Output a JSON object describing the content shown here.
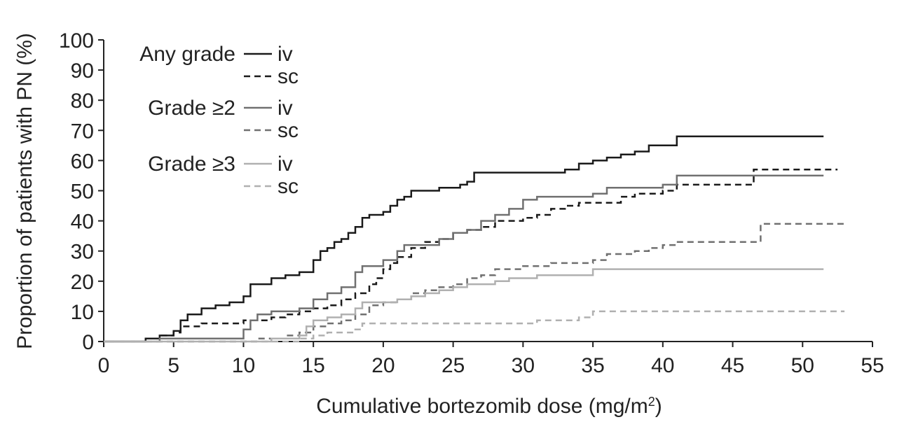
{
  "chart_data": {
    "type": "line",
    "step": true,
    "xlabel": "Cumulative bortezomib dose (mg/m",
    "xlabel_superscript": "2",
    "xlabel_suffix": ")",
    "ylabel": "Proportion of patients with PN (%)",
    "xlim": [
      0,
      55
    ],
    "ylim": [
      0,
      100
    ],
    "xticks": [
      0,
      5,
      10,
      15,
      20,
      25,
      30,
      35,
      40,
      45,
      50,
      55
    ],
    "yticks": [
      0,
      10,
      20,
      30,
      40,
      50,
      60,
      70,
      80,
      90,
      100
    ],
    "grid": false,
    "legend_position": "top-left",
    "legend_groups": [
      {
        "label": "Any grade",
        "entries": [
          "iv",
          "sc"
        ]
      },
      {
        "label": "Grade ≥2",
        "entries": [
          "iv",
          "sc"
        ]
      },
      {
        "label": "Grade ≥3",
        "entries": [
          "iv",
          "sc"
        ]
      }
    ],
    "series": [
      {
        "group": "Any grade",
        "route": "iv",
        "color": "#1a1a1a",
        "dash": "solid",
        "points": [
          [
            0,
            0
          ],
          [
            2,
            0
          ],
          [
            3,
            1
          ],
          [
            4,
            2
          ],
          [
            5,
            3.5
          ],
          [
            5.5,
            7
          ],
          [
            6,
            9
          ],
          [
            7,
            11
          ],
          [
            8,
            12
          ],
          [
            9,
            13
          ],
          [
            10,
            15
          ],
          [
            10.5,
            19
          ],
          [
            12,
            21
          ],
          [
            13,
            22
          ],
          [
            14,
            23
          ],
          [
            15,
            27
          ],
          [
            15.5,
            30
          ],
          [
            16,
            31
          ],
          [
            16.5,
            33
          ],
          [
            17,
            34
          ],
          [
            17.5,
            36
          ],
          [
            18,
            38
          ],
          [
            18.5,
            41
          ],
          [
            19,
            42
          ],
          [
            20,
            43
          ],
          [
            20.5,
            45
          ],
          [
            21,
            47
          ],
          [
            21.5,
            48
          ],
          [
            22,
            50
          ],
          [
            24,
            51
          ],
          [
            25.5,
            52
          ],
          [
            26,
            53
          ],
          [
            26.5,
            56
          ],
          [
            28,
            56
          ],
          [
            33,
            57
          ],
          [
            34,
            59
          ],
          [
            35,
            60
          ],
          [
            36,
            61
          ],
          [
            37,
            62
          ],
          [
            38,
            63
          ],
          [
            39,
            65
          ],
          [
            40,
            65
          ],
          [
            41,
            68
          ],
          [
            44,
            68
          ],
          [
            51.5,
            68
          ]
        ]
      },
      {
        "group": "Any grade",
        "route": "sc",
        "color": "#1a1a1a",
        "dash": "dashed",
        "points": [
          [
            0,
            0
          ],
          [
            2,
            0
          ],
          [
            3,
            1
          ],
          [
            4,
            2
          ],
          [
            5,
            3
          ],
          [
            5.5,
            5
          ],
          [
            7,
            6
          ],
          [
            10,
            7
          ],
          [
            10.5,
            7
          ],
          [
            12,
            8
          ],
          [
            13,
            9
          ],
          [
            14,
            10
          ],
          [
            15,
            11
          ],
          [
            16,
            12
          ],
          [
            17,
            14
          ],
          [
            18,
            16
          ],
          [
            19,
            19
          ],
          [
            19.5,
            21
          ],
          [
            20,
            24
          ],
          [
            20.5,
            26
          ],
          [
            21,
            28
          ],
          [
            22,
            31
          ],
          [
            23,
            33
          ],
          [
            24,
            34
          ],
          [
            25,
            36
          ],
          [
            26,
            37
          ],
          [
            27,
            38
          ],
          [
            28,
            40
          ],
          [
            30,
            41
          ],
          [
            31,
            42
          ],
          [
            32,
            44
          ],
          [
            33,
            45
          ],
          [
            34,
            46
          ],
          [
            36,
            46
          ],
          [
            37,
            48
          ],
          [
            38,
            49
          ],
          [
            40,
            50
          ],
          [
            41,
            52
          ],
          [
            46,
            52
          ],
          [
            46.5,
            57
          ],
          [
            52.5,
            57
          ]
        ]
      },
      {
        "group": "Grade ≥2",
        "route": "iv",
        "color": "#707070",
        "dash": "solid",
        "points": [
          [
            0,
            0
          ],
          [
            2,
            0
          ],
          [
            4,
            1
          ],
          [
            10,
            1
          ],
          [
            10,
            4
          ],
          [
            10.5,
            7
          ],
          [
            11,
            9
          ],
          [
            12,
            10
          ],
          [
            14,
            11
          ],
          [
            15,
            14
          ],
          [
            16,
            16
          ],
          [
            17,
            18
          ],
          [
            18,
            23
          ],
          [
            18.5,
            25
          ],
          [
            19,
            25
          ],
          [
            20,
            27
          ],
          [
            21,
            30
          ],
          [
            21.5,
            32
          ],
          [
            23,
            32
          ],
          [
            24,
            34
          ],
          [
            25,
            36
          ],
          [
            26,
            37
          ],
          [
            27,
            40
          ],
          [
            28,
            42
          ],
          [
            29,
            44
          ],
          [
            30,
            47
          ],
          [
            31,
            48
          ],
          [
            32,
            48
          ],
          [
            34,
            48
          ],
          [
            35,
            49
          ],
          [
            36,
            51
          ],
          [
            38,
            51
          ],
          [
            40,
            52
          ],
          [
            41,
            55
          ],
          [
            43,
            55
          ],
          [
            51.5,
            55
          ]
        ]
      },
      {
        "group": "Grade ≥2",
        "route": "sc",
        "color": "#707070",
        "dash": "dashed",
        "points": [
          [
            0,
            0
          ],
          [
            10,
            0
          ],
          [
            11,
            1
          ],
          [
            13,
            2
          ],
          [
            14,
            3
          ],
          [
            15,
            5
          ],
          [
            16,
            6
          ],
          [
            17,
            7
          ],
          [
            18,
            9
          ],
          [
            19,
            12
          ],
          [
            20,
            13
          ],
          [
            21,
            14
          ],
          [
            22,
            16
          ],
          [
            23,
            17
          ],
          [
            24,
            18
          ],
          [
            25,
            19
          ],
          [
            26,
            21
          ],
          [
            27,
            22
          ],
          [
            28,
            24
          ],
          [
            29,
            24
          ],
          [
            30,
            25
          ],
          [
            31,
            25
          ],
          [
            32,
            26
          ],
          [
            34,
            26
          ],
          [
            35,
            27
          ],
          [
            36,
            29
          ],
          [
            38,
            30
          ],
          [
            39,
            31
          ],
          [
            40,
            32
          ],
          [
            41,
            33
          ],
          [
            43,
            33
          ],
          [
            46.5,
            33
          ],
          [
            47,
            39
          ],
          [
            53,
            39
          ]
        ]
      },
      {
        "group": "Grade ≥3",
        "route": "iv",
        "color": "#b0b0b0",
        "dash": "solid",
        "points": [
          [
            0,
            0
          ],
          [
            10,
            0
          ],
          [
            12,
            1
          ],
          [
            14,
            2
          ],
          [
            14.5,
            5
          ],
          [
            15,
            7
          ],
          [
            16,
            8
          ],
          [
            17,
            9
          ],
          [
            18,
            11
          ],
          [
            18.5,
            13
          ],
          [
            20,
            13
          ],
          [
            21,
            14
          ],
          [
            22,
            15
          ],
          [
            23,
            16
          ],
          [
            24,
            17
          ],
          [
            25,
            18
          ],
          [
            26,
            19
          ],
          [
            28,
            20
          ],
          [
            29,
            21
          ],
          [
            30,
            21
          ],
          [
            31,
            22
          ],
          [
            35,
            23
          ],
          [
            35,
            24
          ],
          [
            38,
            24
          ],
          [
            51.5,
            24
          ]
        ]
      },
      {
        "group": "Grade ≥3",
        "route": "sc",
        "color": "#b0b0b0",
        "dash": "dashed",
        "points": [
          [
            0,
            0
          ],
          [
            12,
            0
          ],
          [
            14,
            1
          ],
          [
            15,
            2
          ],
          [
            16,
            3
          ],
          [
            18,
            4
          ],
          [
            18.5,
            6
          ],
          [
            22,
            6
          ],
          [
            25,
            6
          ],
          [
            30,
            6
          ],
          [
            31,
            7
          ],
          [
            33,
            7
          ],
          [
            34,
            8
          ],
          [
            35,
            10
          ],
          [
            40,
            10
          ],
          [
            53,
            10
          ]
        ]
      }
    ]
  }
}
